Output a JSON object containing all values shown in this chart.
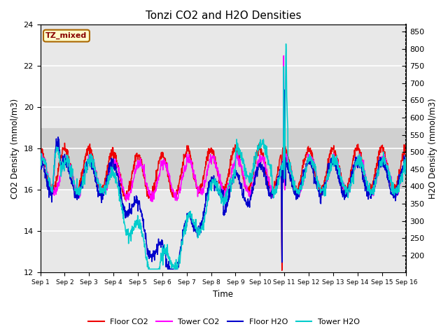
{
  "title": "Tonzi CO2 and H2O Densities",
  "xlabel": "Time",
  "ylabel_left": "CO2 Density (mmol/m3)",
  "ylabel_right": "H2O Density (mmol/m3)",
  "xlim_days": [
    0,
    15
  ],
  "ylim_left": [
    12,
    24
  ],
  "ylim_right": [
    150,
    870
  ],
  "yticks_left": [
    12,
    14,
    16,
    18,
    20,
    22,
    24
  ],
  "yticks_right": [
    200,
    250,
    300,
    350,
    400,
    450,
    500,
    550,
    600,
    650,
    700,
    750,
    800,
    850
  ],
  "xtick_labels": [
    "Sep 1",
    "Sep 2",
    "Sep 3",
    "Sep 4",
    "Sep 5",
    "Sep 6",
    "Sep 7",
    "Sep 8",
    "Sep 9",
    "Sep 10",
    "Sep 11",
    "Sep 12",
    "Sep 13",
    "Sep 14",
    "Sep 15",
    "Sep 16"
  ],
  "annotation_text": "TZ_mixed",
  "annotation_color": "#880000",
  "annotation_bg": "#ffffcc",
  "annotation_border": "#aa6600",
  "series_colors": {
    "floor_co2": "#ee0000",
    "tower_co2": "#ff00ff",
    "floor_h2o": "#0000cc",
    "tower_h2o": "#00cccc"
  },
  "series_linewidth": 1.1,
  "legend_labels": [
    "Floor CO2",
    "Tower CO2",
    "Floor H2O",
    "Tower H2O"
  ],
  "plot_bg_light": "#e8e8e8",
  "plot_bg_dark": "#d0d0d0",
  "grid_color": "white",
  "title_fontsize": 11,
  "band_y_low": 16,
  "band_y_high": 19
}
